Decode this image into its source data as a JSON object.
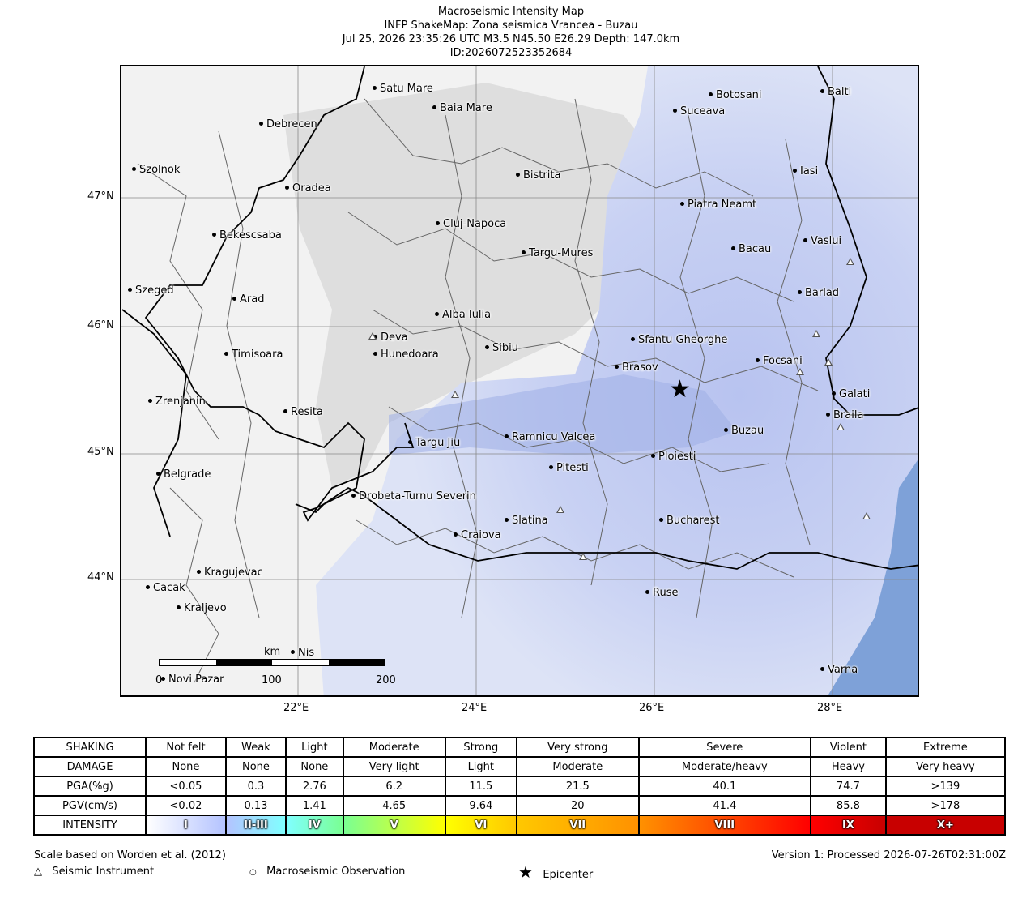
{
  "title": {
    "line1": "Macroseismic Intensity Map",
    "line2": "INFP ShakeMap: Zona seismica Vrancea - Buzau",
    "line3": "Jul 25, 2026 23:35:26 UTC M3.5 N45.50 E26.29 Depth: 147.0km",
    "line4": "ID:2026072523352684"
  },
  "map": {
    "lat_labels": [
      "47°N",
      "46°N",
      "45°N",
      "44°N"
    ],
    "lon_labels": [
      "22°E",
      "24°E",
      "26°E",
      "28°E"
    ],
    "cities": [
      {
        "name": "Satu Mare"
      },
      {
        "name": "Baia Mare"
      },
      {
        "name": "Debrecen"
      },
      {
        "name": "Botosani"
      },
      {
        "name": "Balti"
      },
      {
        "name": "Suceava"
      },
      {
        "name": "Szolnok"
      },
      {
        "name": "Bistrita"
      },
      {
        "name": "Iasi"
      },
      {
        "name": "Oradea"
      },
      {
        "name": "Piatra Neamt"
      },
      {
        "name": "Cluj-Napoca"
      },
      {
        "name": "Bekescsaba"
      },
      {
        "name": "Vaslui"
      },
      {
        "name": "Bacau"
      },
      {
        "name": "Targu-Mures"
      },
      {
        "name": "Szeged"
      },
      {
        "name": "Barlad"
      },
      {
        "name": "Arad"
      },
      {
        "name": "Alba Iulia"
      },
      {
        "name": "Deva"
      },
      {
        "name": "Sfantu Gheorghe"
      },
      {
        "name": "Sibiu"
      },
      {
        "name": "Timisoara"
      },
      {
        "name": "Hunedoara"
      },
      {
        "name": "Focsani"
      },
      {
        "name": "Brasov"
      },
      {
        "name": "Zrenjanin"
      },
      {
        "name": "Galati"
      },
      {
        "name": "Resita"
      },
      {
        "name": "Braila"
      },
      {
        "name": "Buzau"
      },
      {
        "name": "Ramnicu Valcea"
      },
      {
        "name": "Targu Jiu"
      },
      {
        "name": "Ploiesti"
      },
      {
        "name": "Pitesti"
      },
      {
        "name": "Belgrade"
      },
      {
        "name": "Drobeta-Turnu Severin"
      },
      {
        "name": "Slatina"
      },
      {
        "name": "Bucharest"
      },
      {
        "name": "Craiova"
      },
      {
        "name": "Kragujevac"
      },
      {
        "name": "Cacak"
      },
      {
        "name": "Ruse"
      },
      {
        "name": "Kraljevo"
      },
      {
        "name": "Nis"
      },
      {
        "name": "Varna"
      },
      {
        "name": "Novi Pazar"
      }
    ],
    "scale": {
      "unit": "km",
      "ticks": [
        "0",
        "100",
        "200"
      ]
    },
    "colors": {
      "land": "#f4f4f4",
      "shaking": "#c9d2f4",
      "sea": "#7ea1d8",
      "border": "#000000"
    }
  },
  "legend": {
    "rows": [
      {
        "label": "SHAKING",
        "values": [
          "Not felt",
          "Weak",
          "Light",
          "Moderate",
          "Strong",
          "Very strong",
          "Severe",
          "Violent",
          "Extreme"
        ]
      },
      {
        "label": "DAMAGE",
        "values": [
          "None",
          "None",
          "None",
          "Very light",
          "Light",
          "Moderate",
          "Moderate/heavy",
          "Heavy",
          "Very heavy"
        ]
      },
      {
        "label": "PGA(%g)",
        "values": [
          "<0.05",
          "0.3",
          "2.76",
          "6.2",
          "11.5",
          "21.5",
          "40.1",
          "74.7",
          ">139"
        ]
      },
      {
        "label": "PGV(cm/s)",
        "values": [
          "<0.02",
          "0.13",
          "1.41",
          "4.65",
          "9.64",
          "20",
          "41.4",
          "85.8",
          ">178"
        ]
      }
    ],
    "intensity": {
      "label": "INTENSITY",
      "classes": [
        {
          "name": "I",
          "color": "#ffffff"
        },
        {
          "name": "II-III",
          "color": "#b4c3ff"
        },
        {
          "name": "IV",
          "color": "#80ffff"
        },
        {
          "name": "V",
          "color": "#7aff93"
        },
        {
          "name": "VI",
          "color": "#ffff00"
        },
        {
          "name": "VII",
          "color": "#ffc800"
        },
        {
          "name": "VIII",
          "color": "#ff9100"
        },
        {
          "name": "IX",
          "color": "#ff0000"
        },
        {
          "name": "X+",
          "color": "#c80000"
        }
      ]
    }
  },
  "footer": {
    "scale_note": "Scale based on Worden et al. (2012)",
    "version": "Version 1: Processed 2026-07-26T02:31:00Z",
    "key_instrument": "Seismic Instrument",
    "key_observation": "Macroseismic Observation",
    "key_epicenter": "Epicenter"
  }
}
